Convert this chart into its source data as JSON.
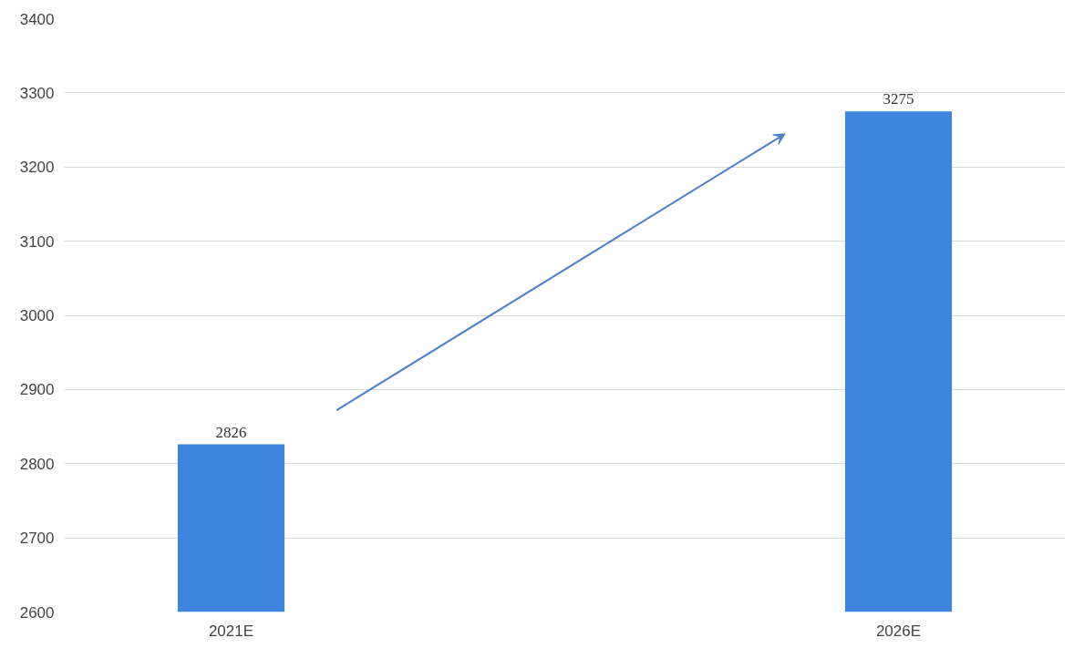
{
  "chart_data": {
    "type": "bar",
    "categories": [
      "2021E",
      "2026E"
    ],
    "values": [
      2826,
      3275
    ],
    "color": "#3f84de",
    "ylim": [
      2600,
      3400
    ],
    "yticks": [
      2600,
      2700,
      2800,
      2900,
      3000,
      3100,
      3200,
      3300,
      3400
    ],
    "grid": "y",
    "data_labels": true
  }
}
